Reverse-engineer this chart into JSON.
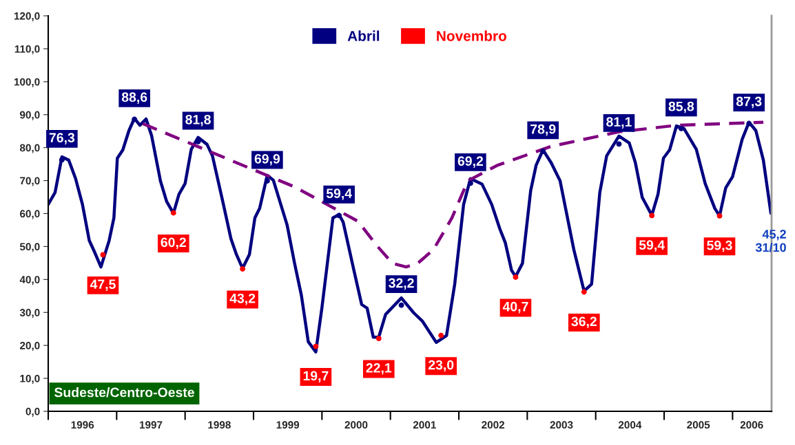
{
  "chart_data": {
    "type": "line",
    "title": "Sudeste/Centro-Oeste",
    "xlim": [
      1996.0,
      2006.57
    ],
    "xticks": [
      {
        "value": 1996.0,
        "label": null
      },
      {
        "value": 1996.5,
        "label": "1996"
      },
      {
        "value": 1997.0,
        "label": null
      },
      {
        "value": 1997.5,
        "label": "1997"
      },
      {
        "value": 1998.0,
        "label": null
      },
      {
        "value": 1998.5,
        "label": "1998"
      },
      {
        "value": 1999.0,
        "label": null
      },
      {
        "value": 1999.5,
        "label": "1999"
      },
      {
        "value": 2000.0,
        "label": null
      },
      {
        "value": 2000.5,
        "label": "2000"
      },
      {
        "value": 2001.0,
        "label": null
      },
      {
        "value": 2001.5,
        "label": "2001"
      },
      {
        "value": 2002.0,
        "label": null
      },
      {
        "value": 2002.5,
        "label": "2002"
      },
      {
        "value": 2003.0,
        "label": null
      },
      {
        "value": 2003.5,
        "label": "2003"
      },
      {
        "value": 2004.0,
        "label": null
      },
      {
        "value": 2004.5,
        "label": "2004"
      },
      {
        "value": 2005.0,
        "label": null
      },
      {
        "value": 2005.5,
        "label": "2005"
      },
      {
        "value": 2006.0,
        "label": null
      },
      {
        "value": 2006.28,
        "label": "2006"
      }
    ],
    "ylim": [
      0,
      120
    ],
    "yticks": [
      {
        "value": 0,
        "label": "0,0"
      },
      {
        "value": 10,
        "label": "10,0"
      },
      {
        "value": 20,
        "label": "20,0"
      },
      {
        "value": 30,
        "label": "30,0"
      },
      {
        "value": 40,
        "label": "40,0"
      },
      {
        "value": 50,
        "label": "50,0"
      },
      {
        "value": 60,
        "label": "60,0"
      },
      {
        "value": 70,
        "label": "70,0"
      },
      {
        "value": 80,
        "label": "80,0"
      },
      {
        "value": 90,
        "label": "90,0"
      },
      {
        "value": 100,
        "label": "100,0"
      },
      {
        "value": 110,
        "label": "110,0"
      },
      {
        "value": 120,
        "label": "120,0"
      }
    ],
    "grid": false,
    "legend": "top",
    "annotations": [
      "45,2\n31/10"
    ],
    "series": [
      {
        "color": "#000080",
        "line_style": "solid",
        "x": [
          1996.0,
          1996.1,
          1996.2,
          1996.3,
          1996.4,
          1996.5,
          1996.6,
          1996.68,
          1996.77,
          1996.89,
          1996.96,
          1997.01,
          1997.09,
          1997.18,
          1997.26,
          1997.34,
          1997.43,
          1997.51,
          1997.64,
          1997.73,
          1997.83,
          1997.91,
          1998.0,
          1998.09,
          1998.19,
          1998.32,
          1998.4,
          1998.55,
          1998.67,
          1998.75,
          1998.84,
          1998.94,
          1999.02,
          1999.09,
          1999.2,
          1999.29,
          1999.49,
          1999.6,
          1999.7,
          1999.8,
          1999.91,
          2000.0,
          2000.16,
          2000.25,
          2000.31,
          2000.46,
          2000.58,
          2000.66,
          2000.75,
          2000.83,
          2000.93,
          2001.16,
          2001.34,
          2001.47,
          2001.67,
          2001.82,
          2001.94,
          2002.07,
          2002.17,
          2002.34,
          2002.48,
          2002.6,
          2002.68,
          2002.77,
          2002.83,
          2002.93,
          2003.05,
          2003.13,
          2003.23,
          2003.35,
          2003.48,
          2003.68,
          2003.83,
          2003.94,
          2004.06,
          2004.16,
          2004.34,
          2004.49,
          2004.58,
          2004.68,
          2004.82,
          2004.91,
          2004.99,
          2005.08,
          2005.18,
          2005.29,
          2005.47,
          2005.6,
          2005.74,
          2005.81,
          2005.9,
          2006.0,
          2006.14,
          2006.24,
          2006.34,
          2006.45,
          2006.56
        ],
        "values": [
          62.8,
          66.4,
          77.2,
          76.2,
          70.6,
          62.8,
          51.8,
          48.2,
          43.8,
          51.8,
          58.7,
          76.8,
          79.3,
          85.2,
          88.9,
          86.8,
          88.7,
          83.7,
          69.9,
          63.7,
          60.1,
          65.8,
          69.1,
          79.5,
          83.1,
          81.0,
          77.5,
          63.7,
          52.4,
          47.6,
          43.4,
          47.6,
          58.7,
          61.6,
          71.6,
          70.1,
          56.6,
          44.9,
          35.1,
          21.1,
          18.0,
          31.5,
          58.7,
          59.7,
          57.4,
          43.4,
          32.4,
          31.3,
          22.5,
          22.5,
          29.4,
          34.4,
          29.9,
          27.3,
          20.9,
          23.0,
          38.6,
          62.8,
          70.6,
          68.9,
          62.8,
          55.3,
          51.1,
          42.8,
          40.9,
          44.9,
          67.0,
          74.7,
          79.3,
          75.4,
          69.9,
          49.1,
          36.5,
          38.6,
          66.4,
          77.5,
          83.5,
          81.4,
          75.4,
          64.9,
          59.5,
          65.8,
          76.8,
          79.3,
          86.6,
          85.8,
          79.5,
          69.1,
          61.6,
          59.3,
          67.8,
          71.2,
          82.5,
          87.7,
          85.2,
          76.2,
          60.1
        ]
      },
      {
        "color": "#800080",
        "line_style": "dashed",
        "x": [
          1997.38,
          1999.6,
          2000.25,
          2000.53,
          2000.8,
          2001.03,
          2001.23,
          2001.4,
          2001.63,
          2001.9,
          2002.13,
          2002.57,
          2003.35,
          2004.34,
          2005.19,
          2006.45
        ],
        "values": [
          87.3,
          68.1,
          60.8,
          57.6,
          50.3,
          44.9,
          43.8,
          44.9,
          49.1,
          58.7,
          69.9,
          74.7,
          80.4,
          84.8,
          86.8,
          87.7
        ]
      },
      {
        "type": "scatter",
        "name": "Abril",
        "color": "#000080",
        "marker": "circle",
        "x": [
          1996.2,
          1997.26,
          1998.19,
          1999.2,
          2000.25,
          2001.16,
          2002.17,
          2003.23,
          2004.34,
          2005.25,
          2006.24
        ],
        "values": [
          76.3,
          88.6,
          81.8,
          69.9,
          59.4,
          32.2,
          69.2,
          78.9,
          81.1,
          85.8,
          87.3
        ],
        "value_labels": [
          "76,3",
          "88,6",
          "81,8",
          "69,9",
          "59,4",
          "32,2",
          "69,2",
          "78,9",
          "81,1",
          "85,8",
          "87,3"
        ]
      },
      {
        "type": "scatter",
        "name": "Novembro",
        "color": "#ff0000",
        "marker": "circle",
        "x": [
          1996.8,
          1997.83,
          1998.84,
          1999.91,
          2000.83,
          2001.74,
          2002.83,
          2003.83,
          2004.82,
          2005.81
        ],
        "values": [
          47.5,
          60.2,
          43.2,
          19.7,
          22.1,
          23.0,
          40.7,
          36.2,
          59.4,
          59.3
        ],
        "value_labels": [
          "47,5",
          "60,2",
          "43,2",
          "19,7",
          "22,1",
          "23,0",
          "40,7",
          "36,2",
          "59,4",
          "59,3"
        ]
      }
    ]
  }
}
